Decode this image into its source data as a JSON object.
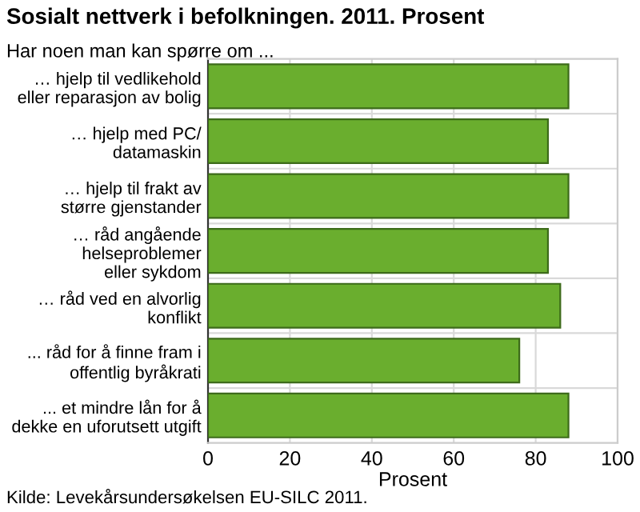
{
  "chart_data": {
    "type": "bar",
    "orientation": "horizontal",
    "title": "Sosialt nettverk i befolkningen. 2011. Prosent",
    "subtitle": "Har noen man kan spørre om ...",
    "xlabel": "Prosent",
    "categories": [
      "… hjelp til vedlikehold\neller reparasjon av bolig",
      "… hjelp med PC/\ndatamaskin",
      "… hjelp til frakt av\nstørre gjenstander",
      "… råd angående\nhelseproblemer\neller sykdom",
      "… råd ved en alvorlig\nkonflikt",
      "... råd for å finne fram i\noffentlig byråkrati",
      "... et mindre lån for å\ndekke en uforutsett utgift"
    ],
    "values": [
      88,
      83,
      88,
      83,
      86,
      76,
      88
    ],
    "color": "#6aae2e",
    "xlim": [
      0,
      100
    ],
    "xticks": [
      0,
      20,
      40,
      60,
      80,
      100
    ],
    "grid": true,
    "legend": false,
    "annotations": [
      "Kilde: Levekårsundersøkelsen EU-SILC 2011."
    ]
  }
}
